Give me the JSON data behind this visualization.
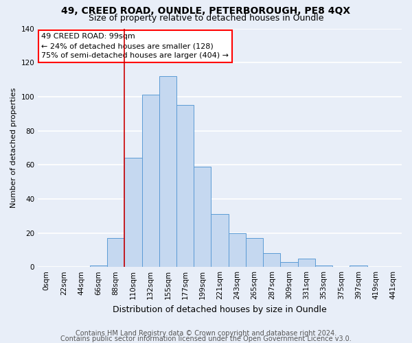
{
  "title1": "49, CREED ROAD, OUNDLE, PETERBOROUGH, PE8 4QX",
  "title2": "Size of property relative to detached houses in Oundle",
  "xlabel": "Distribution of detached houses by size in Oundle",
  "ylabel": "Number of detached properties",
  "bar_labels": [
    "0sqm",
    "22sqm",
    "44sqm",
    "66sqm",
    "88sqm",
    "110sqm",
    "132sqm",
    "155sqm",
    "177sqm",
    "199sqm",
    "221sqm",
    "243sqm",
    "265sqm",
    "287sqm",
    "309sqm",
    "331sqm",
    "353sqm",
    "375sqm",
    "397sqm",
    "419sqm",
    "441sqm"
  ],
  "bar_heights": [
    0,
    0,
    0,
    1,
    17,
    64,
    101,
    112,
    95,
    59,
    31,
    20,
    17,
    8,
    3,
    5,
    1,
    0,
    1,
    0,
    0
  ],
  "bar_color": "#c5d8f0",
  "bar_edge_color": "#5b9bd5",
  "annotation_text": "49 CREED ROAD: 99sqm\n← 24% of detached houses are smaller (128)\n75% of semi-detached houses are larger (404) →",
  "annotation_box_color": "white",
  "annotation_box_edge_color": "red",
  "vline_x": 4.5,
  "vline_color": "#cc0000",
  "ylim": [
    0,
    140
  ],
  "yticks": [
    0,
    20,
    40,
    60,
    80,
    100,
    120,
    140
  ],
  "footer1": "Contains HM Land Registry data © Crown copyright and database right 2024.",
  "footer2": "Contains public sector information licensed under the Open Government Licence v3.0.",
  "bg_color": "#e8eef8",
  "plot_bg_color": "#e8eef8",
  "grid_color": "white",
  "title1_fontsize": 10,
  "title2_fontsize": 9,
  "xlabel_fontsize": 9,
  "ylabel_fontsize": 8,
  "tick_fontsize": 7.5,
  "footer_fontsize": 7
}
